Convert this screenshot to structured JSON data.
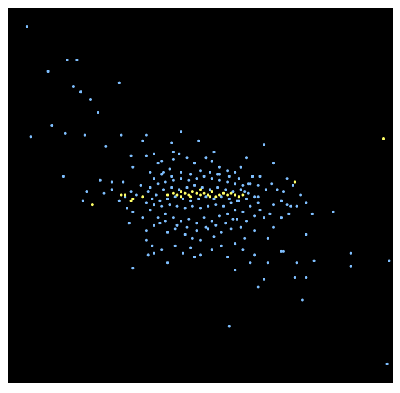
{
  "chart_data": {
    "type": "scatter",
    "title": "",
    "xlabel": "",
    "ylabel": "",
    "xlim": [
      -1.0,
      1.0
    ],
    "ylim": [
      -1.0,
      1.0
    ],
    "grid": false,
    "legend": "none",
    "background": "#000000",
    "series": [
      {
        "color": "#7fbfff",
        "points": [
          [
            -0.9,
            0.9
          ],
          [
            -0.79,
            0.66
          ],
          [
            -0.69,
            0.72
          ],
          [
            -0.64,
            0.72
          ],
          [
            -0.66,
            0.58
          ],
          [
            -0.62,
            0.55
          ],
          [
            -0.57,
            0.51
          ],
          [
            -0.53,
            0.44
          ],
          [
            -0.77,
            0.37
          ],
          [
            -0.88,
            0.31
          ],
          [
            -0.7,
            0.33
          ],
          [
            -0.6,
            0.32
          ],
          [
            -0.42,
            0.6
          ],
          [
            -0.41,
            0.32
          ],
          [
            -0.28,
            0.32
          ],
          [
            -0.3,
            0.29
          ],
          [
            -0.49,
            0.26
          ],
          [
            -0.36,
            0.21
          ],
          [
            -0.71,
            0.1
          ],
          [
            -0.52,
            0.08
          ],
          [
            -0.46,
            0.07
          ],
          [
            -0.46,
            0.03
          ],
          [
            -0.5,
            0.01
          ],
          [
            -0.59,
            0.02
          ],
          [
            -0.61,
            -0.03
          ],
          [
            -0.4,
            0.07
          ],
          [
            -0.39,
            -0.01
          ],
          [
            -0.36,
            0.02
          ],
          [
            -0.33,
            0.0
          ],
          [
            -0.38,
            -0.07
          ],
          [
            -0.35,
            -0.09
          ],
          [
            -0.42,
            -0.03
          ],
          [
            -0.28,
            0.21
          ],
          [
            -0.24,
            0.22
          ],
          [
            -0.22,
            0.17
          ],
          [
            -0.2,
            0.18
          ],
          [
            -0.26,
            0.12
          ],
          [
            -0.24,
            0.09
          ],
          [
            -0.19,
            0.12
          ],
          [
            -0.16,
            0.14
          ],
          [
            -0.14,
            0.19
          ],
          [
            -0.11,
            0.22
          ],
          [
            -0.14,
            0.23
          ],
          [
            -0.01,
            0.29
          ],
          [
            -0.07,
            0.2
          ],
          [
            -0.03,
            0.17
          ],
          [
            0.03,
            0.2
          ],
          [
            0.06,
            0.18
          ],
          [
            0.1,
            0.15
          ],
          [
            0.09,
            0.11
          ],
          [
            0.14,
            0.13
          ],
          [
            0.18,
            0.12
          ],
          [
            0.24,
            0.2
          ],
          [
            0.21,
            0.15
          ],
          [
            0.27,
            0.1
          ],
          [
            0.31,
            0.1
          ],
          [
            0.25,
            0.06
          ],
          [
            0.3,
            0.05
          ],
          [
            0.34,
            0.03
          ],
          [
            0.37,
            0.06
          ],
          [
            0.4,
            0.03
          ],
          [
            0.43,
            0.02
          ],
          [
            0.42,
            -0.03
          ],
          [
            0.38,
            -0.05
          ],
          [
            0.45,
            -0.05
          ],
          [
            0.36,
            -0.1
          ],
          [
            0.33,
            -0.12
          ],
          [
            0.31,
            -0.08
          ],
          [
            0.28,
            -0.11
          ],
          [
            0.24,
            -0.14
          ],
          [
            0.21,
            -0.17
          ],
          [
            0.19,
            -0.13
          ],
          [
            0.16,
            -0.18
          ],
          [
            0.11,
            -0.2
          ],
          [
            0.07,
            -0.22
          ],
          [
            0.04,
            -0.18
          ],
          [
            0.0,
            -0.24
          ],
          [
            -0.04,
            -0.23
          ],
          [
            -0.08,
            -0.21
          ],
          [
            -0.13,
            -0.18
          ],
          [
            -0.17,
            -0.2
          ],
          [
            -0.21,
            -0.15
          ],
          [
            -0.24,
            -0.16
          ],
          [
            -0.28,
            -0.19
          ],
          [
            -0.3,
            -0.12
          ],
          [
            -0.26,
            -0.08
          ],
          [
            -0.22,
            -0.12
          ],
          [
            -0.18,
            -0.1
          ],
          [
            -0.14,
            -0.12
          ],
          [
            -0.1,
            -0.14
          ],
          [
            -0.06,
            -0.13
          ],
          [
            -0.02,
            -0.15
          ],
          [
            0.02,
            -0.12
          ],
          [
            0.06,
            -0.14
          ],
          [
            0.1,
            -0.11
          ],
          [
            0.14,
            -0.1
          ],
          [
            0.18,
            -0.08
          ],
          [
            0.22,
            -0.09
          ],
          [
            0.26,
            -0.06
          ],
          [
            0.3,
            -0.04
          ],
          [
            -0.26,
            0.04
          ],
          [
            -0.22,
            0.06
          ],
          [
            -0.18,
            0.07
          ],
          [
            -0.14,
            0.08
          ],
          [
            -0.1,
            0.09
          ],
          [
            -0.06,
            0.08
          ],
          [
            -0.02,
            0.09
          ],
          [
            0.02,
            0.1
          ],
          [
            0.06,
            0.09
          ],
          [
            0.1,
            0.08
          ],
          [
            0.14,
            0.07
          ],
          [
            0.18,
            0.06
          ],
          [
            0.22,
            0.05
          ],
          [
            0.26,
            0.06
          ],
          [
            0.3,
            -0.01
          ],
          [
            -0.28,
            -0.04
          ],
          [
            -0.24,
            -0.05
          ],
          [
            -0.2,
            -0.06
          ],
          [
            -0.16,
            -0.05
          ],
          [
            -0.12,
            -0.06
          ],
          [
            -0.08,
            -0.07
          ],
          [
            -0.04,
            -0.06
          ],
          [
            0.0,
            -0.07
          ],
          [
            0.04,
            -0.06
          ],
          [
            0.08,
            -0.05
          ],
          [
            0.12,
            -0.06
          ],
          [
            0.16,
            -0.04
          ],
          [
            0.2,
            -0.03
          ],
          [
            0.24,
            -0.02
          ],
          [
            0.28,
            -0.01
          ],
          [
            -0.31,
            0.05
          ],
          [
            -0.27,
            0.02
          ],
          [
            -0.23,
            0.0
          ],
          [
            -0.19,
            0.03
          ],
          [
            -0.15,
            0.04
          ],
          [
            -0.11,
            0.03
          ],
          [
            -0.07,
            0.04
          ],
          [
            -0.03,
            0.05
          ],
          [
            0.01,
            0.04
          ],
          [
            0.05,
            0.03
          ],
          [
            0.09,
            0.04
          ],
          [
            0.13,
            0.03
          ],
          [
            0.17,
            0.02
          ],
          [
            0.21,
            0.03
          ],
          [
            0.25,
            0.01
          ],
          [
            -0.25,
            -0.02
          ],
          [
            -0.21,
            -0.03
          ],
          [
            -0.17,
            -0.02
          ],
          [
            -0.13,
            -0.01
          ],
          [
            -0.09,
            -0.02
          ],
          [
            -0.05,
            -0.03
          ],
          [
            -0.01,
            -0.02
          ],
          [
            0.03,
            -0.01
          ],
          [
            0.07,
            -0.02
          ],
          [
            0.11,
            -0.01
          ],
          [
            0.15,
            -0.02
          ],
          [
            0.19,
            -0.03
          ],
          [
            0.23,
            0.02
          ],
          [
            -0.2,
            0.11
          ],
          [
            -0.15,
            0.1
          ],
          [
            -0.1,
            0.12
          ],
          [
            -0.05,
            0.11
          ],
          [
            0.0,
            0.13
          ],
          [
            0.05,
            0.12
          ],
          [
            0.1,
            0.11
          ],
          [
            0.15,
            0.1
          ],
          [
            0.2,
            0.09
          ],
          [
            -0.18,
            -0.14
          ],
          [
            -0.12,
            -0.16
          ],
          [
            -0.07,
            -0.17
          ],
          [
            -0.02,
            -0.19
          ],
          [
            0.03,
            -0.17
          ],
          [
            0.08,
            -0.16
          ],
          [
            0.13,
            -0.15
          ],
          [
            0.17,
            -0.13
          ],
          [
            -0.28,
            -0.24
          ],
          [
            -0.25,
            -0.27
          ],
          [
            -0.2,
            -0.29
          ],
          [
            -0.13,
            -0.27
          ],
          [
            -0.09,
            -0.31
          ],
          [
            -0.05,
            -0.28
          ],
          [
            0.0,
            -0.32
          ],
          [
            0.06,
            -0.29
          ],
          [
            0.11,
            -0.27
          ],
          [
            0.14,
            -0.33
          ],
          [
            0.18,
            -0.26
          ],
          [
            0.23,
            -0.23
          ],
          [
            0.28,
            -0.19
          ],
          [
            0.35,
            -0.23
          ],
          [
            0.38,
            -0.17
          ],
          [
            0.42,
            -0.12
          ],
          [
            0.46,
            -0.1
          ],
          [
            0.5,
            -0.06
          ],
          [
            0.55,
            -0.04
          ],
          [
            0.58,
            -0.1
          ],
          [
            0.52,
            0.0
          ],
          [
            0.48,
            0.05
          ],
          [
            0.45,
            0.09
          ],
          [
            0.38,
            0.17
          ],
          [
            0.33,
            0.27
          ],
          [
            -0.15,
            0.28
          ],
          [
            -0.1,
            0.34
          ],
          [
            0.07,
            0.23
          ],
          [
            -0.35,
            0.15
          ],
          [
            -0.37,
            -0.15
          ],
          [
            -0.17,
            -0.36
          ],
          [
            -0.03,
            -0.33
          ],
          [
            0.28,
            -0.32
          ],
          [
            0.43,
            -0.3
          ],
          [
            0.5,
            -0.36
          ],
          [
            0.55,
            -0.21
          ],
          [
            0.69,
            -0.09
          ],
          [
            0.33,
            -0.45
          ],
          [
            0.18,
            -0.4
          ],
          [
            -0.27,
            -0.32
          ],
          [
            -0.24,
            -0.31
          ],
          [
            0.59,
            -0.35
          ],
          [
            0.53,
            -0.56
          ],
          [
            0.42,
            -0.3
          ],
          [
            0.3,
            -0.49
          ],
          [
            0.55,
            -0.44
          ],
          [
            0.78,
            -0.31
          ],
          [
            0.78,
            -0.38
          ],
          [
            0.97,
            -0.9
          ],
          [
            0.98,
            -0.35
          ],
          [
            0.15,
            -0.7
          ],
          [
            -0.35,
            -0.39
          ],
          [
            0.49,
            -0.44
          ],
          [
            0.47,
            -0.06
          ],
          [
            0.35,
            -0.36
          ],
          [
            0.22,
            -0.29
          ],
          [
            0.26,
            -0.36
          ]
        ]
      },
      {
        "color": "#ffff66",
        "points": [
          [
            -0.17,
            0.0
          ],
          [
            -0.14,
            0.01
          ],
          [
            -0.12,
            0.0
          ],
          [
            -0.1,
            -0.01
          ],
          [
            -0.08,
            0.01
          ],
          [
            -0.06,
            0.0
          ],
          [
            -0.04,
            0.02
          ],
          [
            -0.02,
            0.01
          ],
          [
            0.0,
            0.0
          ],
          [
            0.02,
            0.01
          ],
          [
            0.04,
            0.0
          ],
          [
            0.06,
            0.02
          ],
          [
            0.08,
            -0.01
          ],
          [
            0.1,
            0.0
          ],
          [
            0.12,
            0.01
          ],
          [
            0.14,
            0.0
          ],
          [
            0.16,
            0.01
          ],
          [
            0.18,
            0.0
          ],
          [
            0.2,
            -0.01
          ],
          [
            0.22,
            0.0
          ],
          [
            -0.05,
            -0.01
          ],
          [
            0.05,
            -0.01
          ],
          [
            0.0,
            0.03
          ],
          [
            -0.1,
            0.02
          ],
          [
            -0.3,
            -0.01
          ],
          [
            -0.35,
            -0.02
          ],
          [
            -0.39,
            0.0
          ],
          [
            -0.41,
            0.0
          ],
          [
            -0.36,
            -0.03
          ],
          [
            0.49,
            0.07
          ],
          [
            -0.56,
            -0.05
          ],
          [
            0.95,
            0.3
          ]
        ]
      }
    ]
  }
}
